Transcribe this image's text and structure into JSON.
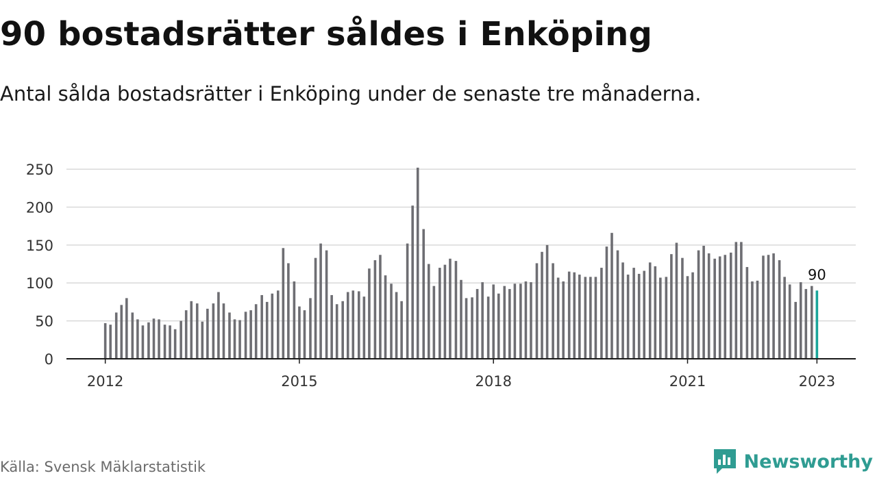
{
  "header": {
    "title": "90 bostadsrätter såldes i Enköping",
    "subtitle": "Antal sålda bostadsrätter i Enköping under de senaste tre månaderna."
  },
  "footer": {
    "source": "Källa: Svensk Mäklarstatistik",
    "brand": "Newsworthy",
    "brand_icon": "newsworthy-logo-icon",
    "brand_color": "#2f9c92"
  },
  "chart_data": {
    "type": "bar",
    "title": "90 bostadsrätter såldes i Enköping",
    "subtitle": "Antal sålda bostadsrätter i Enköping under de senaste tre månaderna.",
    "xlabel": "",
    "ylabel": "",
    "ylim": [
      0,
      260
    ],
    "yticks": [
      0,
      50,
      100,
      150,
      200,
      250
    ],
    "xlim": [
      2011.4,
      2023.6
    ],
    "xticks": [
      "2012",
      "2015",
      "2018",
      "2021",
      "2023"
    ],
    "grid": true,
    "legend": "none",
    "bar_color": "#6e6e73",
    "highlight_color": "#1aa59a",
    "annotation": "90",
    "x": [
      2012.0,
      2012.08,
      2012.17,
      2012.25,
      2012.33,
      2012.42,
      2012.5,
      2012.58,
      2012.67,
      2012.75,
      2012.83,
      2012.92,
      2013.0,
      2013.08,
      2013.17,
      2013.25,
      2013.33,
      2013.42,
      2013.5,
      2013.58,
      2013.67,
      2013.75,
      2013.83,
      2013.92,
      2014.0,
      2014.08,
      2014.17,
      2014.25,
      2014.33,
      2014.42,
      2014.5,
      2014.58,
      2014.67,
      2014.75,
      2014.83,
      2014.92,
      2015.0,
      2015.08,
      2015.17,
      2015.25,
      2015.33,
      2015.42,
      2015.5,
      2015.58,
      2015.67,
      2015.75,
      2015.83,
      2015.92,
      2016.0,
      2016.08,
      2016.17,
      2016.25,
      2016.33,
      2016.42,
      2016.5,
      2016.58,
      2016.67,
      2016.75,
      2016.83,
      2016.92,
      2017.0,
      2017.08,
      2017.17,
      2017.25,
      2017.33,
      2017.42,
      2017.5,
      2017.58,
      2017.67,
      2017.75,
      2017.83,
      2017.92,
      2018.0,
      2018.08,
      2018.17,
      2018.25,
      2018.33,
      2018.42,
      2018.5,
      2018.58,
      2018.67,
      2018.75,
      2018.83,
      2018.92,
      2019.0,
      2019.08,
      2019.17,
      2019.25,
      2019.33,
      2019.42,
      2019.5,
      2019.58,
      2019.67,
      2019.75,
      2019.83,
      2019.92,
      2020.0,
      2020.08,
      2020.17,
      2020.25,
      2020.33,
      2020.42,
      2020.5,
      2020.58,
      2020.67,
      2020.75,
      2020.83,
      2020.92,
      2021.0,
      2021.08,
      2021.17,
      2021.25,
      2021.33,
      2021.42,
      2021.5,
      2021.58,
      2021.67,
      2021.75,
      2021.83,
      2021.92,
      2022.0,
      2022.08,
      2022.17,
      2022.25,
      2022.33,
      2022.42,
      2022.5,
      2022.58,
      2022.67,
      2022.75,
      2022.83,
      2022.92,
      2023.0
    ],
    "values": [
      47,
      45,
      61,
      71,
      80,
      61,
      52,
      44,
      48,
      53,
      52,
      45,
      44,
      39,
      50,
      64,
      76,
      73,
      49,
      66,
      73,
      88,
      73,
      61,
      52,
      51,
      62,
      64,
      72,
      84,
      75,
      86,
      90,
      146,
      126,
      102,
      69,
      64,
      80,
      133,
      152,
      143,
      84,
      72,
      76,
      88,
      90,
      89,
      82,
      119,
      130,
      137,
      110,
      99,
      88,
      76,
      152,
      202,
      252,
      171,
      125,
      96,
      120,
      124,
      132,
      129,
      104,
      80,
      81,
      92,
      101,
      82,
      98,
      86,
      96,
      92,
      99,
      99,
      102,
      101,
      126,
      141,
      150,
      126,
      107,
      102,
      115,
      114,
      111,
      108,
      108,
      108,
      120,
      148,
      166,
      143,
      127,
      111,
      120,
      112,
      116,
      127,
      122,
      107,
      108,
      138,
      153,
      133,
      109,
      114,
      143,
      149,
      139,
      132,
      135,
      137,
      140,
      154,
      154,
      121,
      102,
      103,
      136,
      137,
      139,
      130,
      108,
      98,
      75,
      101,
      92,
      96,
      90
    ]
  }
}
